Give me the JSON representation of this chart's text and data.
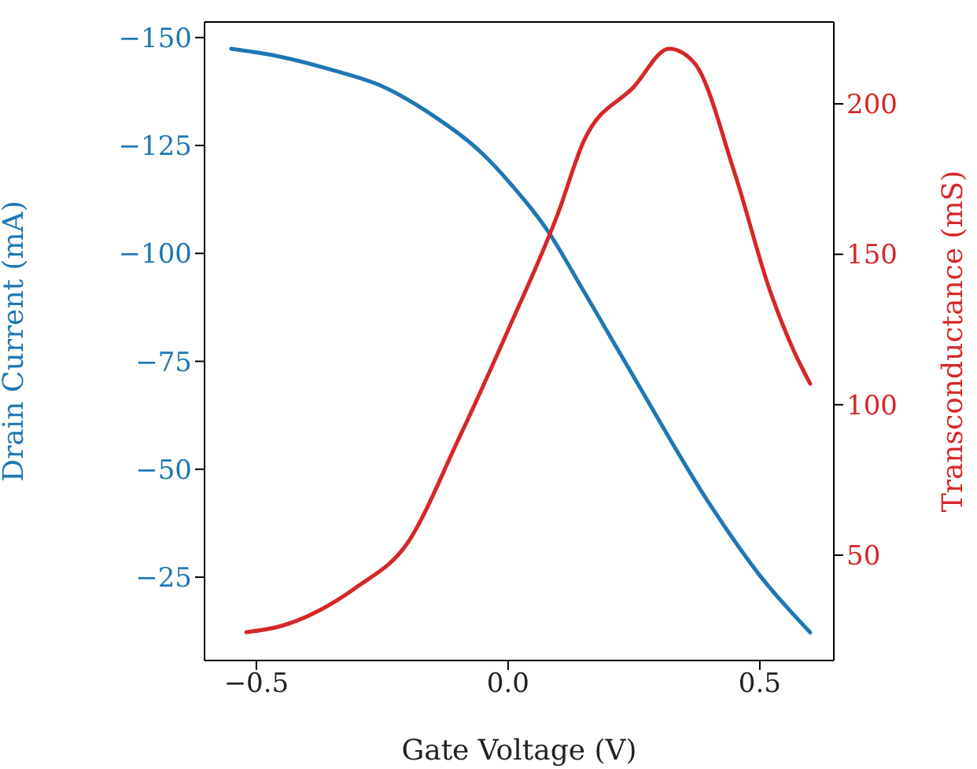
{
  "chart_data": {
    "type": "line",
    "xlabel": "Gate Voltage (V)",
    "ylabel": "Drain Current (mA)",
    "y2label": "Transconductance (mS)",
    "xlim": [
      -0.603,
      0.647
    ],
    "xticks": [
      {
        "value": -0.5,
        "label": "−0.5"
      },
      {
        "value": 0,
        "label": "0.0"
      },
      {
        "value": 0.5,
        "label": "0.5"
      }
    ],
    "ylim": [
      -5.7,
      -153.6
    ],
    "yticks": [
      -25,
      -50,
      -75,
      -100,
      -125,
      -150
    ],
    "y2lim": [
      15,
      227.2
    ],
    "y2ticks": [
      50,
      100,
      150,
      200
    ],
    "series": [
      {
        "color": "#1f77b4",
        "x": [
          -0.55,
          -0.45,
          -0.35,
          -0.25,
          -0.15,
          -0.05,
          0.0,
          0.08,
          0.15,
          0.25,
          0.4,
          0.5,
          0.6
        ],
        "values": [
          -147.4,
          -145.5,
          -142.5,
          -138.7,
          -132,
          -123,
          -116.8,
          -105,
          -91.3,
          -71.3,
          -42,
          -25.4,
          -12.2
        ]
      },
      {
        "color": "#d62728",
        "axis": "y2",
        "x": [
          -0.52,
          -0.45,
          -0.3,
          -0.2,
          -0.1,
          0.0,
          0.1,
          0.15,
          0.25,
          0.32,
          0.37,
          0.45,
          0.52,
          0.57,
          0.6
        ],
        "values": [
          24.4,
          26.5,
          39.5,
          54,
          88,
          124.8,
          164,
          187.5,
          205.7,
          218.3,
          213.6,
          177,
          138,
          117,
          107
        ]
      }
    ]
  }
}
